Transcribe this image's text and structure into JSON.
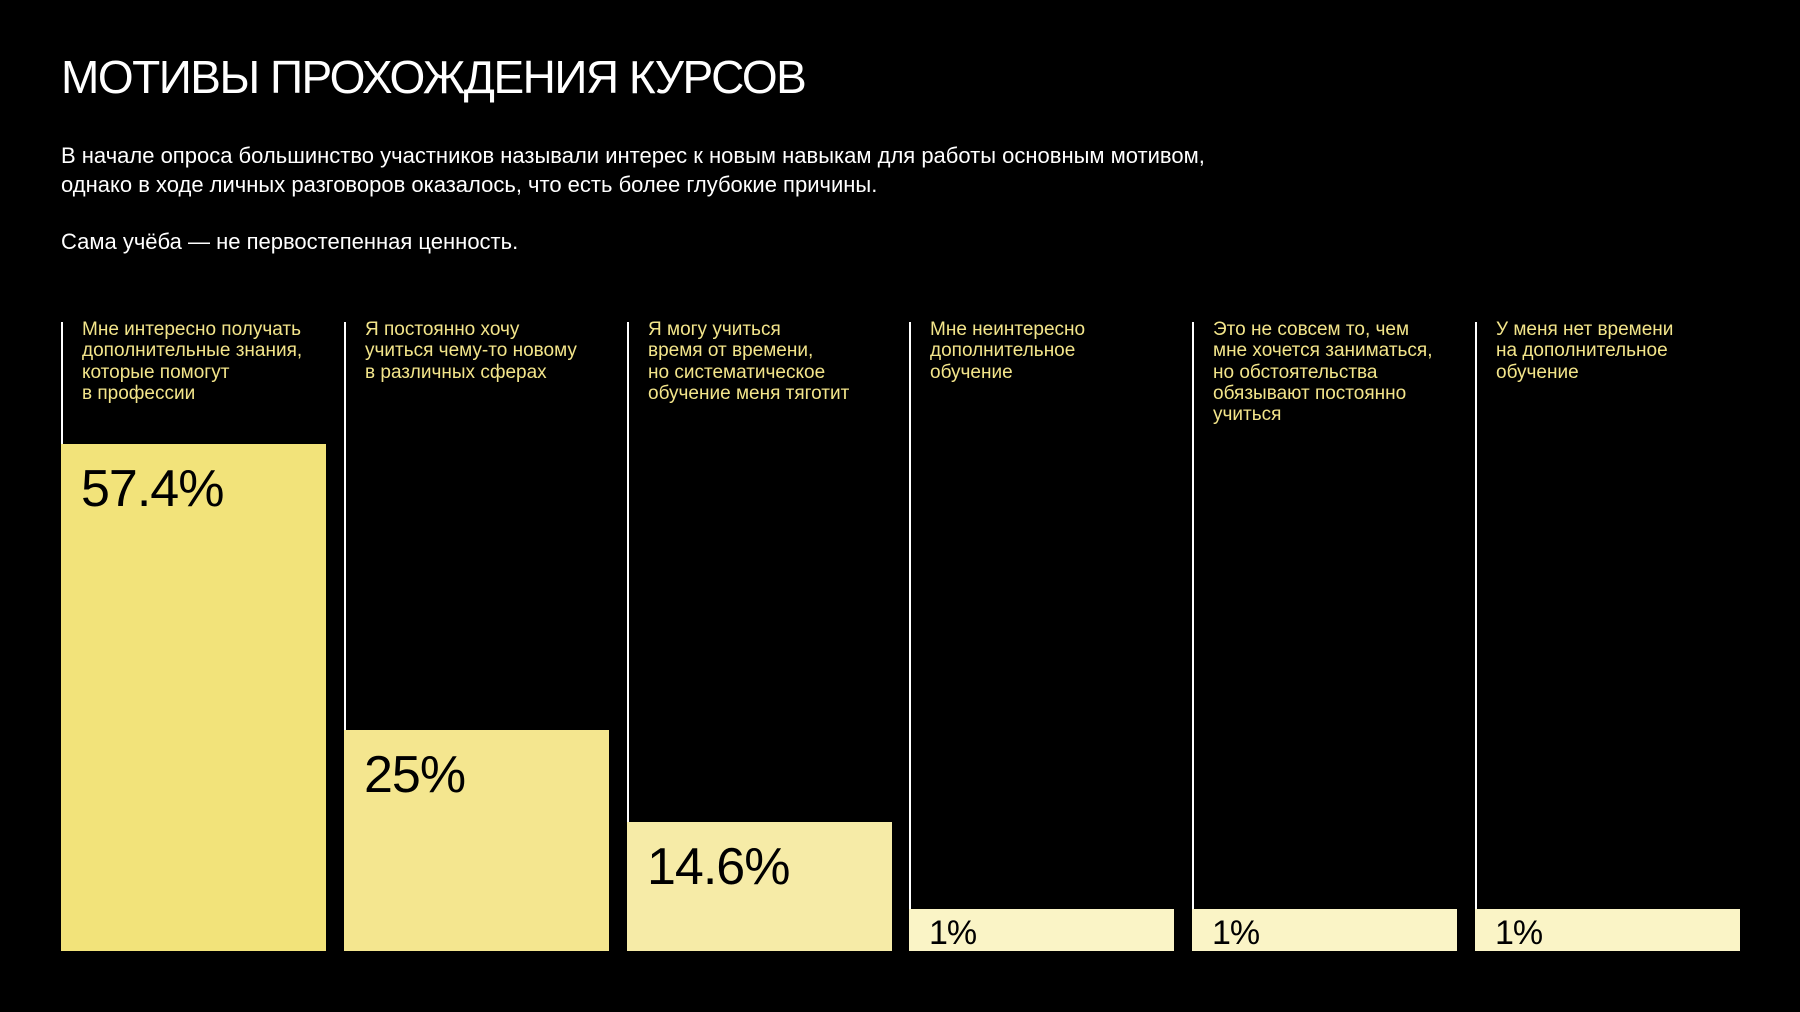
{
  "page": {
    "title": "МОТИВЫ ПРОХОЖДЕНИЯ КУРСОВ",
    "description": [
      "В начале опроса большинство участников называли интерес к новым навыкам для работы основным мотивом, однако в ходе личных разговоров оказалось, что есть более глубокие причины.",
      "Сама учёба — не первостепенная ценность."
    ]
  },
  "colors": {
    "background": "#000000",
    "text": "#ffffff",
    "label": "#f3e58a",
    "bar_shades": [
      "#f2e37a",
      "#f4e68f",
      "#f6eba7",
      "#faf4c6",
      "#faf4c6",
      "#faf4c6"
    ]
  },
  "chart_data": {
    "type": "bar",
    "orientation": "vertical",
    "ylim": [
      0,
      57.4
    ],
    "categories": [
      "Мне интересно получать дополнительные знания, которые помогут в профессии",
      "Я постоянно хочу учиться чему-то новому в различных сферах",
      "Я могу учиться время от времени, но систематическое обучение меня тяготит",
      "Мне неинтересно дополнительное обучение",
      "Это не совсем то, чем мне хочется заниматься, но обстоятельства обязывают постоянно учиться",
      "У меня нет времени на дополнительное обучение"
    ],
    "category_lines": [
      [
        "Мне интересно получать",
        "дополнительные знания,",
        "которые помогут",
        "в профессии"
      ],
      [
        "Я постоянно хочу",
        "учиться чему-то новому",
        "в различных сферах"
      ],
      [
        "Я могу учиться",
        "время от времени,",
        "но систематическое",
        "обучение меня тяготит"
      ],
      [
        "Мне неинтересно",
        "дополнительное",
        "обучение"
      ],
      [
        "Это не совсем то, чем",
        "мне хочется заниматься,",
        "но обстоятельства",
        "обязывают постоянно",
        "учиться"
      ],
      [
        "У меня нет времени",
        "на дополнительное",
        "обучение"
      ]
    ],
    "values": [
      57.4,
      25,
      14.6,
      1,
      1,
      1
    ],
    "value_labels": [
      "57.4%",
      "25%",
      "14.6%",
      "1%",
      "1%",
      "1%"
    ],
    "unit": "%",
    "grid": false,
    "legend": "none"
  }
}
